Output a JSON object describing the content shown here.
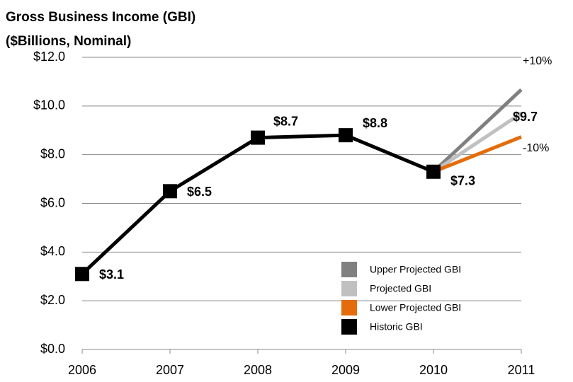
{
  "chart_data": {
    "type": "line",
    "title": "Gross Business Income  (GBI)",
    "subtitle": "($Billions, Nominal)",
    "categories": [
      "2006",
      "2007",
      "2008",
      "2009",
      "2010",
      "2011"
    ],
    "ylim": [
      0,
      12
    ],
    "yticks": [
      {
        "value": 0,
        "label": "$0.0"
      },
      {
        "value": 2,
        "label": "$2.0"
      },
      {
        "value": 4,
        "label": "$4.0"
      },
      {
        "value": 6,
        "label": "$6.0"
      },
      {
        "value": 8,
        "label": "$8.0"
      },
      {
        "value": 10,
        "label": "$10.0"
      },
      {
        "value": 12,
        "label": "$12.0"
      }
    ],
    "grid": true,
    "legend": "lower right",
    "series": [
      {
        "name": "Upper Projected GBI",
        "color": "#808080",
        "values": [
          null,
          null,
          null,
          null,
          7.3,
          10.67
        ]
      },
      {
        "name": "Projected GBI",
        "color": "#c0c0c0",
        "values": [
          null,
          null,
          null,
          null,
          7.3,
          9.7
        ],
        "value_labels": [
          null,
          null,
          null,
          null,
          null,
          "$9.7"
        ]
      },
      {
        "name": "Lower Projected GBI",
        "color": "#e46c0a",
        "values": [
          null,
          null,
          null,
          null,
          7.3,
          8.73
        ]
      },
      {
        "name": "Historic GBI",
        "color": "#000000",
        "values": [
          3.1,
          6.5,
          8.7,
          8.8,
          7.3,
          null
        ],
        "value_labels": [
          "$3.1",
          "$6.5",
          "$8.7",
          "$8.8",
          "$7.3",
          null
        ]
      }
    ],
    "annotations": [
      "+10%",
      "-10%"
    ]
  }
}
